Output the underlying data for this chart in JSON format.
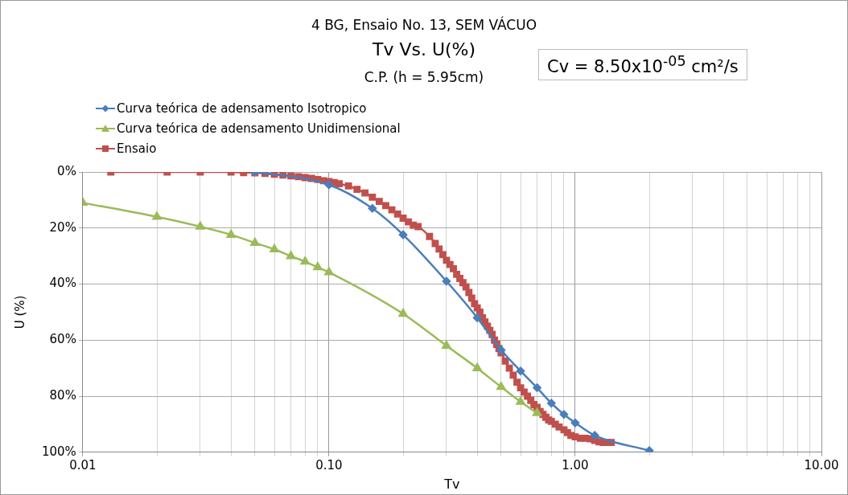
{
  "chart_data": {
    "type": "line",
    "title": "4 BG, Ensaio No. 13, SEM VÁCUO",
    "subtitle": "Tv Vs. U(%)",
    "annotations": [
      "C.P. (h = 5.95cm)",
      "Cv = 8.50x10$^{-05}$ cm²/s"
    ],
    "xlabel": "Tv",
    "ylabel": "U (%)",
    "log": "x",
    "xlim": [
      0.01,
      10
    ],
    "ylim": [
      100,
      0
    ],
    "xticks": [
      {
        "value": 0.01,
        "label": "0.01"
      },
      {
        "value": 0.02,
        "label": null
      },
      {
        "value": 0.03,
        "label": null
      },
      {
        "value": 0.04,
        "label": null
      },
      {
        "value": 0.05,
        "label": null
      },
      {
        "value": 0.06,
        "label": null
      },
      {
        "value": 0.07,
        "label": null
      },
      {
        "value": 0.08,
        "label": null
      },
      {
        "value": 0.09,
        "label": null
      },
      {
        "value": 0.1,
        "label": "0.10"
      },
      {
        "value": 0.2,
        "label": null
      },
      {
        "value": 0.3,
        "label": null
      },
      {
        "value": 0.4,
        "label": null
      },
      {
        "value": 0.5,
        "label": null
      },
      {
        "value": 0.6,
        "label": null
      },
      {
        "value": 0.7,
        "label": null
      },
      {
        "value": 0.8,
        "label": null
      },
      {
        "value": 0.9,
        "label": null
      },
      {
        "value": 1,
        "label": "1.00"
      },
      {
        "value": 2,
        "label": null
      },
      {
        "value": 3,
        "label": null
      },
      {
        "value": 4,
        "label": null
      },
      {
        "value": 5,
        "label": null
      },
      {
        "value": 6,
        "label": null
      },
      {
        "value": 7,
        "label": null
      },
      {
        "value": 8,
        "label": null
      },
      {
        "value": 9,
        "label": null
      },
      {
        "value": 10,
        "label": "10.00"
      }
    ],
    "yticks": [
      {
        "value": 0,
        "label": "0%"
      },
      {
        "value": 20,
        "label": "20%"
      },
      {
        "value": 40,
        "label": "40%"
      },
      {
        "value": 60,
        "label": "60%"
      },
      {
        "value": 80,
        "label": "80%"
      },
      {
        "value": 100,
        "label": "100%"
      }
    ],
    "grid": true,
    "legend": "top left",
    "line_style": "solid",
    "series": [
      {
        "name": "Curva teórica de adensamento Isotropico",
        "color": "#4a7ebb",
        "marker": "diamond",
        "x": [
          0.05,
          0.1,
          0.15,
          0.2,
          0.3,
          0.4,
          0.5,
          0.6,
          0.7,
          0.8,
          0.9,
          1.0,
          1.2,
          2.0
        ],
        "values": [
          0,
          4.6,
          13,
          22.4,
          39,
          52,
          63.5,
          71,
          77,
          82.5,
          86.5,
          89.5,
          94,
          99.4
        ]
      },
      {
        "name": "Curva teórica de adensamento Unidimensional",
        "color": "#9bbb59",
        "marker": "triangle",
        "x": [
          0.01,
          0.02,
          0.03,
          0.04,
          0.05,
          0.06,
          0.07,
          0.08,
          0.09,
          0.1,
          0.2,
          0.3,
          0.4,
          0.5,
          0.6,
          0.7
        ],
        "values": [
          11,
          16,
          19.5,
          22.4,
          25.3,
          27.6,
          30,
          32,
          34,
          35.8,
          50.6,
          62,
          70,
          76.7,
          82,
          86
        ]
      },
      {
        "name": "Ensaio",
        "color": "#c0504d",
        "marker": "square",
        "x": [
          0.013,
          0.022,
          0.03,
          0.04,
          0.045,
          0.05,
          0.055,
          0.06,
          0.065,
          0.07,
          0.075,
          0.08,
          0.085,
          0.09,
          0.095,
          0.1,
          0.105,
          0.11,
          0.12,
          0.13,
          0.14,
          0.15,
          0.16,
          0.17,
          0.18,
          0.19,
          0.2,
          0.21,
          0.22,
          0.23,
          0.256,
          0.27,
          0.28,
          0.29,
          0.3,
          0.31,
          0.32,
          0.33,
          0.34,
          0.35,
          0.36,
          0.37,
          0.38,
          0.39,
          0.4,
          0.41,
          0.42,
          0.43,
          0.44,
          0.45,
          0.46,
          0.47,
          0.48,
          0.49,
          0.5,
          0.52,
          0.54,
          0.56,
          0.58,
          0.6,
          0.62,
          0.64,
          0.66,
          0.68,
          0.7,
          0.72,
          0.74,
          0.76,
          0.78,
          0.8,
          0.83,
          0.86,
          0.9,
          0.93,
          0.96,
          1.0,
          1.05,
          1.1,
          1.15,
          1.2,
          1.25,
          1.3,
          1.35,
          1.4
        ],
        "values": [
          0,
          0,
          0,
          0,
          0.2,
          0.3,
          0.5,
          0.8,
          1.1,
          1.4,
          1.7,
          2,
          2.3,
          2.7,
          3.1,
          3.4,
          3.8,
          4.2,
          5,
          6.2,
          7.5,
          9,
          10.5,
          12,
          13.5,
          15,
          16.5,
          17.8,
          19,
          19.5,
          23,
          25.5,
          27.5,
          29.5,
          31.5,
          33,
          34.5,
          36.5,
          38,
          39.5,
          41,
          43,
          45,
          47,
          48.5,
          50,
          52,
          53.5,
          55,
          56.5,
          58,
          60,
          61.5,
          63,
          64.5,
          67.5,
          70,
          72.5,
          75,
          77,
          78.5,
          80,
          81.5,
          83,
          84,
          85.5,
          86.5,
          87.5,
          88.5,
          89,
          90,
          91,
          92,
          93,
          94,
          94.5,
          95,
          95,
          95.2,
          95.8,
          96.3,
          96.5,
          96.5,
          96.5
        ]
      }
    ]
  }
}
